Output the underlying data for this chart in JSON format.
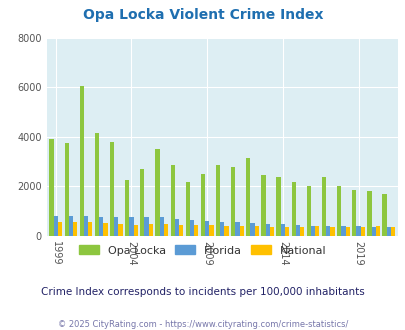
{
  "title": "Opa Locka Violent Crime Index",
  "years": [
    1999,
    2000,
    2001,
    2002,
    2003,
    2004,
    2005,
    2006,
    2007,
    2008,
    2009,
    2010,
    2011,
    2012,
    2013,
    2014,
    2015,
    2016,
    2017,
    2018,
    2019,
    2020,
    2021
  ],
  "opa_locka": [
    3900,
    3750,
    6050,
    4150,
    3800,
    2250,
    2700,
    3500,
    2850,
    2200,
    2500,
    2850,
    2800,
    3150,
    2450,
    2400,
    2200,
    2000,
    2400,
    2000,
    1850,
    1800,
    1700
  ],
  "florida": [
    820,
    820,
    820,
    780,
    780,
    750,
    760,
    760,
    700,
    650,
    600,
    560,
    550,
    510,
    500,
    475,
    440,
    420,
    410,
    395,
    385,
    365,
    355
  ],
  "national": [
    580,
    560,
    545,
    510,
    475,
    460,
    465,
    470,
    460,
    445,
    430,
    400,
    390,
    390,
    370,
    360,
    370,
    395,
    380,
    370,
    360,
    395,
    380
  ],
  "opa_locka_color": "#8dc63f",
  "florida_color": "#5b9bd5",
  "national_color": "#ffc000",
  "plot_bg_color": "#ddeef3",
  "fig_bg_color": "#ffffff",
  "ylim": [
    0,
    8000
  ],
  "yticks": [
    0,
    2000,
    4000,
    6000,
    8000
  ],
  "xtick_labels": [
    "1999",
    "2004",
    "2009",
    "2014",
    "2019"
  ],
  "xtick_year_vals": [
    1999,
    2004,
    2009,
    2014,
    2019
  ],
  "title_color": "#1f6fb0",
  "title_fontsize": 10,
  "subtitle": "Crime Index corresponds to incidents per 100,000 inhabitants",
  "subtitle_color": "#222266",
  "subtitle_fontsize": 7.5,
  "footer": "© 2025 CityRating.com - https://www.cityrating.com/crime-statistics/",
  "footer_color": "#7777aa",
  "footer_fontsize": 6,
  "legend_labels": [
    "Opa Locka",
    "Florida",
    "National"
  ],
  "legend_fontsize": 8,
  "tick_fontsize": 7,
  "bar_width": 0.28,
  "grid_color": "#ffffff",
  "grid_lw": 0.8
}
